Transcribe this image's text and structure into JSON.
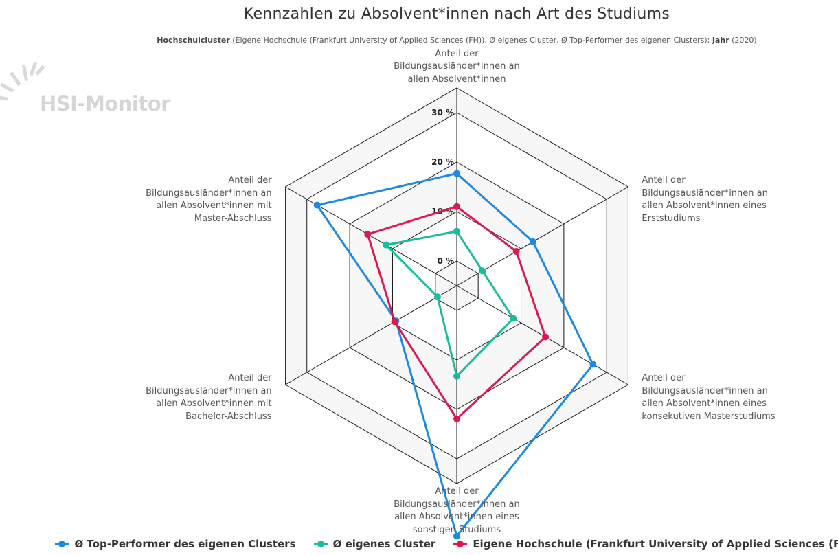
{
  "header": {
    "title": "Kennzahlen zu Absolvent*innen nach Art des Studiums",
    "subtitle_bold1": "Hochschulcluster",
    "subtitle_text1": " (Eigene Hochschule (Frankfurt University of Applied Sciences (FH)), Ø eigenes Cluster, Ø Top-Performer des eigenen Clusters); ",
    "subtitle_bold2": "Jahr",
    "subtitle_text2": " (2020)"
  },
  "watermark": {
    "text": "HSI-Monitor"
  },
  "chart_data": {
    "type": "radar",
    "axes": [
      "Anteil der Bildungsausländer*innen an allen Absolvent*innen",
      "Anteil der Bildungsausländer*innen an allen Absolvent*innen eines Erststudiums",
      "Anteil der Bildungsausländer*innen an allen Absolvent*innen eines konsekutiven Masterstudiums",
      "Anteil der Bildungsausländer*innen an allen Absolvent*innen eines sonstigen Studiums",
      "Anteil der Bildungsausländer*innen an allen Absolvent*innen mit Bachelor-Abschluss",
      "Anteil der Bildungsausländer*innen an allen Absolvent*innen mit Master-Abschluss"
    ],
    "axis_label_lines": [
      [
        "Anteil der",
        "Bildungsausländer*innen an",
        "allen Absolvent*innen"
      ],
      [
        "Anteil der",
        "Bildungsausländer*innen an",
        "allen Absolvent*innen eines",
        "Erststudiums"
      ],
      [
        "Anteil der",
        "Bildungsausländer*innen an",
        "allen Absolvent*innen eines",
        "konsekutiven Masterstudiums"
      ],
      [
        "Anteil der",
        "Bildungsausländer*innen an",
        "allen Absolvent*innen eines",
        "sonstigen Studiums"
      ],
      [
        "Anteil der",
        "Bildungsausländer*innen an",
        "allen Absolvent*innen mit",
        "Bachelor-Abschluss"
      ],
      [
        "Anteil der",
        "Bildungsausländer*innen an",
        "allen Absolvent*innen mit",
        "Master-Abschluss"
      ]
    ],
    "radial_ticks": [
      {
        "value": 0,
        "label": "0 %"
      },
      {
        "value": 10,
        "label": "10 %"
      },
      {
        "value": 20,
        "label": "20 %"
      },
      {
        "value": 30,
        "label": "30 %"
      }
    ],
    "rmin": -5,
    "rmax": 35,
    "series": [
      {
        "name": "Ø Top-Performer des eigenen Clusters",
        "color": "#1e88e5",
        "values": [
          17.7,
          12.8,
          26.8,
          45.6,
          9.2,
          27.6
        ]
      },
      {
        "name": "Ø eigenes Cluster",
        "color": "#1abc9c",
        "values": [
          6.0,
          1.0,
          8.2,
          13.3,
          -0.5,
          11.5
        ]
      },
      {
        "name": "Eigene Hochschule (Frankfurt University of Applied Sciences (FH))",
        "color": "#e0174f",
        "values": [
          11.0,
          8.9,
          15.7,
          21.9,
          9.5,
          15.8
        ]
      }
    ],
    "legend_position": "bottom",
    "grid": true
  }
}
